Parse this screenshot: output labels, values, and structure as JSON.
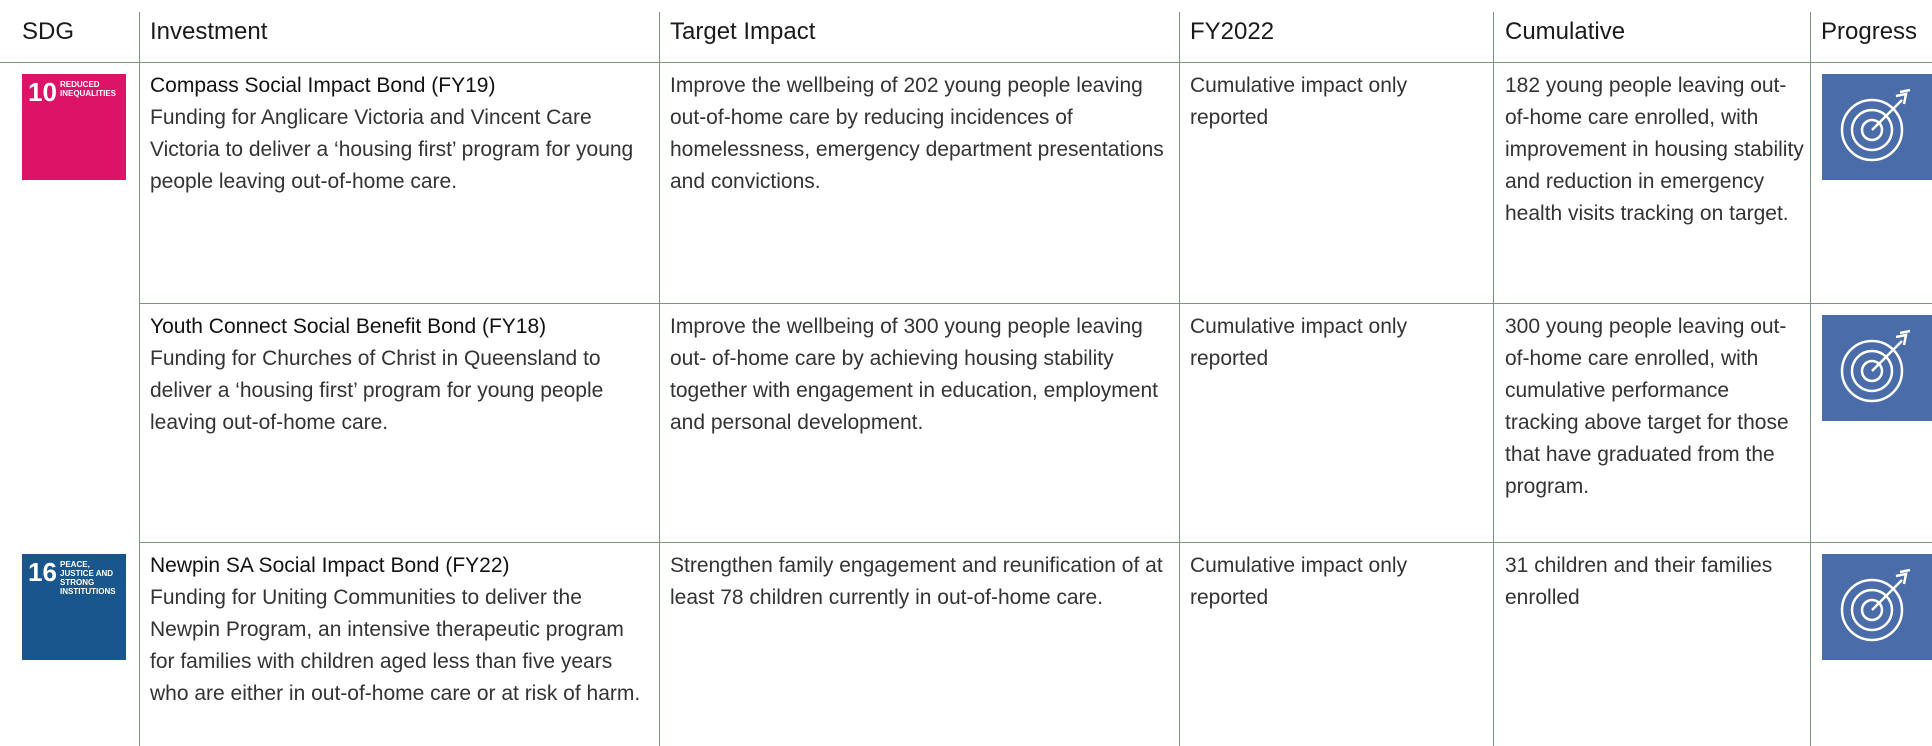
{
  "table": {
    "header": [
      "SDG",
      "Investment",
      "Target Impact",
      "FY2022",
      "Cumulative",
      "Progress"
    ],
    "rows": [
      {
        "sdg": {
          "number": "10",
          "label": "REDUCED INEQUALITIES",
          "color": "#dd1367"
        },
        "investment": {
          "title": "Compass Social Impact Bond (FY19)",
          "description": "Funding for Anglicare Victoria and Vincent Care Victoria to deliver a ‘housing first’ program for young people leaving out-of-home care."
        },
        "target": "Improve the wellbeing of 202 young people leaving out-of-home care by reducing incidences of homelessness, emergency department presentations and convictions.",
        "fy2022": "Cumulative impact only reported",
        "cumulative": "182 young people leaving out-of-home care enrolled, with improvement in housing stability and reduction in emergency health visits tracking on target."
      },
      {
        "sdg": null,
        "investment": {
          "title": "Youth Connect Social Benefit Bond (FY18)",
          "description": "Funding for Churches of Christ in Queensland to deliver a ‘housing first’ program for young people leaving out-of-home care."
        },
        "target": "Improve the wellbeing of 300 young people leaving out- of-home care by achieving housing stability together with engagement in education, employment and personal development.",
        "fy2022": "Cumulative impact only reported",
        "cumulative": "300 young people leaving out-of-home care enrolled, with cumulative performance tracking above target for those that have graduated from the program."
      },
      {
        "sdg": {
          "number": "16",
          "label": "PEACE, JUSTICE AND STRONG INSTITUTIONS",
          "color": "#19568c"
        },
        "investment": {
          "title": "Newpin SA Social Impact Bond (FY22)",
          "description": "Funding for Uniting Communities to deliver the Newpin Program, an intensive therapeutic program for families with children aged less than five years who are either in out-of-home care or at risk of harm."
        },
        "target": "Strengthen family engagement and reunification of at least 78 children currently in out-of-home care.",
        "fy2022": "Cumulative impact only reported",
        "cumulative": "31 children and their families enrolled"
      }
    ]
  }
}
